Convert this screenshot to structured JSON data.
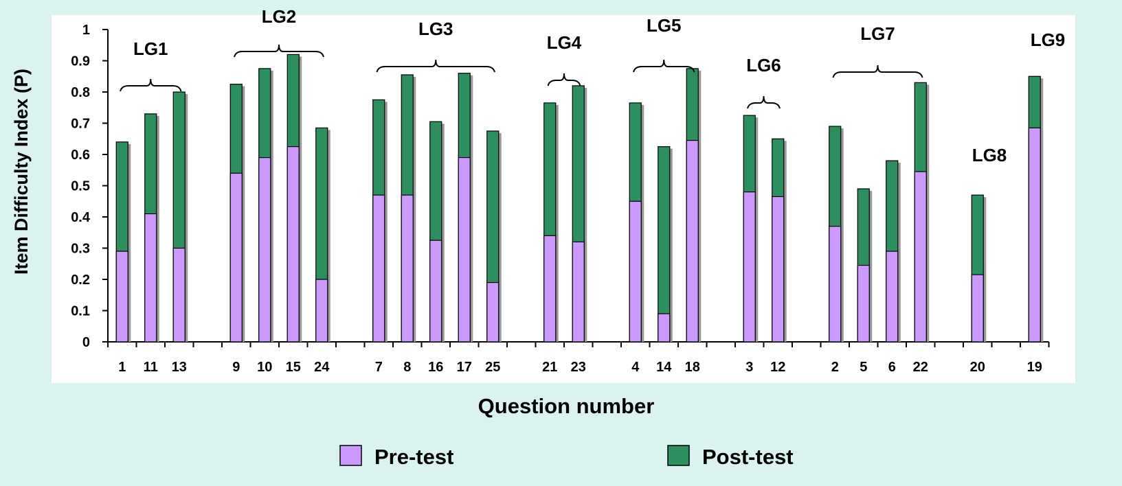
{
  "chart_data": {
    "type": "bar",
    "x_label": "Question number",
    "y_label": "Item Difficulty Index (P)",
    "categories": [
      "1",
      "11",
      "13",
      null,
      "9",
      "10",
      "15",
      "24",
      null,
      "7",
      "8",
      "16",
      "17",
      "25",
      null,
      "21",
      "23",
      null,
      "4",
      "14",
      "18",
      null,
      "3",
      "12",
      null,
      "2",
      "5",
      "6",
      "22",
      null,
      "20",
      null,
      "19"
    ],
    "series": [
      {
        "name": "Pre-test",
        "color": "#cc99ff",
        "values": [
          0.29,
          0.41,
          0.3,
          null,
          0.54,
          0.59,
          0.625,
          0.2,
          null,
          0.47,
          0.47,
          0.325,
          0.59,
          0.19,
          null,
          0.34,
          0.32,
          null,
          0.45,
          0.09,
          0.645,
          null,
          0.48,
          0.465,
          null,
          0.37,
          0.245,
          0.29,
          0.545,
          null,
          0.215,
          null,
          0.685
        ]
      },
      {
        "name": "Post-test",
        "color": "#2e8f5e",
        "values": [
          0.64,
          0.73,
          0.8,
          null,
          0.825,
          0.875,
          0.92,
          0.685,
          null,
          0.775,
          0.855,
          0.705,
          0.86,
          0.675,
          null,
          0.765,
          0.82,
          null,
          0.765,
          0.625,
          0.875,
          null,
          0.725,
          0.65,
          null,
          0.69,
          0.49,
          0.58,
          0.83,
          null,
          0.47,
          null,
          0.85
        ]
      }
    ],
    "annotations": [
      "LG1",
      "LG2",
      "LG3",
      "LG4",
      "LG5",
      "LG6",
      "LG7",
      "LG8",
      "LG9"
    ],
    "ylim": [
      0,
      1
    ],
    "yticks": [
      0,
      0.1,
      0.2,
      0.3,
      0.4,
      0.5,
      0.6,
      0.7,
      0.8,
      0.9,
      1
    ],
    "overlap": true,
    "grid": false
  }
}
